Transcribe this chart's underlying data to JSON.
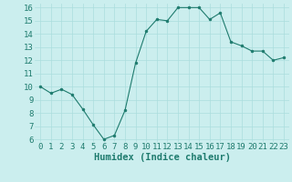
{
  "x": [
    0,
    1,
    2,
    3,
    4,
    5,
    6,
    7,
    8,
    9,
    10,
    11,
    12,
    13,
    14,
    15,
    16,
    17,
    18,
    19,
    20,
    21,
    22,
    23
  ],
  "y": [
    10,
    9.5,
    9.8,
    9.4,
    8.3,
    7.1,
    6.0,
    6.3,
    8.2,
    11.8,
    14.2,
    15.1,
    15.0,
    16.0,
    16.0,
    16.0,
    15.1,
    15.6,
    13.4,
    13.1,
    12.7,
    12.7,
    12.0,
    12.2
  ],
  "xlabel": "Humidex (Indice chaleur)",
  "ylim": [
    6,
    16
  ],
  "xlim": [
    -0.5,
    23.5
  ],
  "yticks": [
    6,
    7,
    8,
    9,
    10,
    11,
    12,
    13,
    14,
    15,
    16
  ],
  "xticks": [
    0,
    1,
    2,
    3,
    4,
    5,
    6,
    7,
    8,
    9,
    10,
    11,
    12,
    13,
    14,
    15,
    16,
    17,
    18,
    19,
    20,
    21,
    22,
    23
  ],
  "line_color": "#1e7b6e",
  "marker_color": "#1e7b6e",
  "bg_color": "#cbeeee",
  "grid_color": "#aadddd",
  "xlabel_fontsize": 7.5,
  "tick_fontsize": 6.5
}
